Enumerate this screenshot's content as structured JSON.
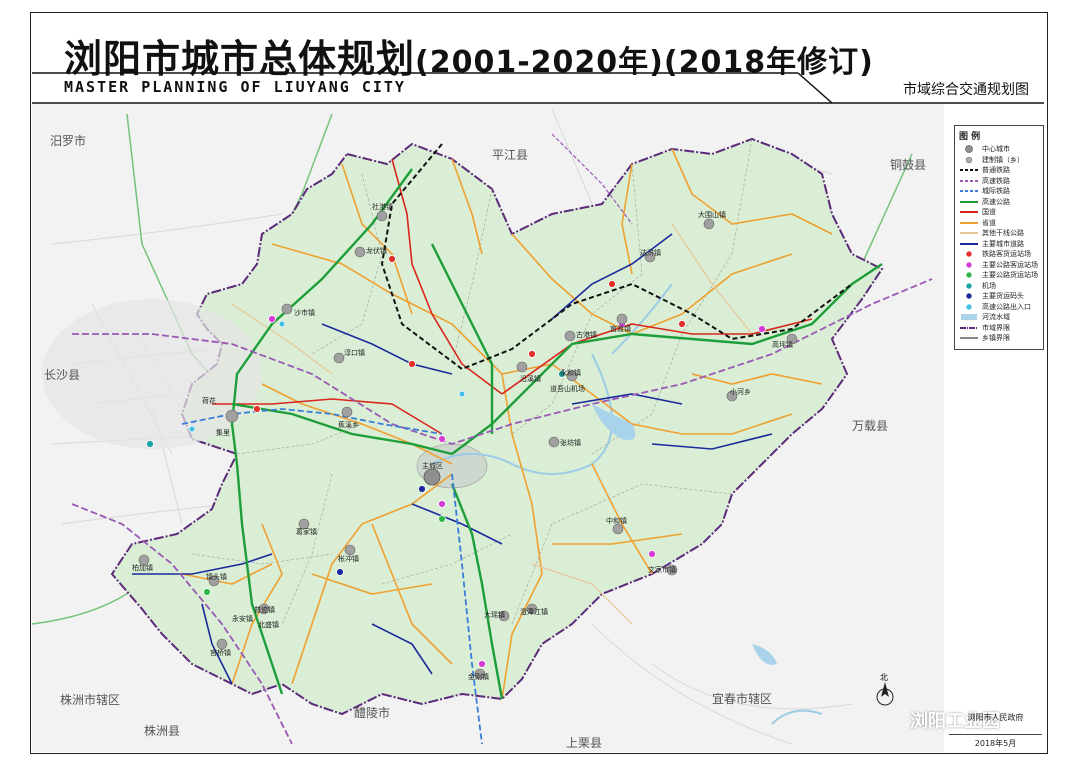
{
  "header": {
    "title_main": "浏阳市城市总体规划",
    "title_years": "(2001-2020年)(2018年修订)",
    "title_en": "MASTER PLANNING OF LIUYANG CITY",
    "map_name": "市域综合交通规划图"
  },
  "legend": {
    "title": "图 例",
    "items": [
      {
        "label": "中心城市",
        "symbol": "circle-gray-large"
      },
      {
        "label": "建制镇（乡）",
        "symbol": "circle-gray-small"
      },
      {
        "label": "普通铁路",
        "symbol": "line-black-dash",
        "color": "#111111"
      },
      {
        "label": "高速铁路",
        "symbol": "line-purple-dash",
        "color": "#9b59b6"
      },
      {
        "label": "城际铁路",
        "symbol": "line-blue-dash",
        "color": "#3b7dd8"
      },
      {
        "label": "高速公路",
        "symbol": "line-green",
        "color": "#1e9e3a"
      },
      {
        "label": "国道",
        "symbol": "line-red",
        "color": "#d9261c"
      },
      {
        "label": "省道",
        "symbol": "line-orange",
        "color": "#f0a030"
      },
      {
        "label": "其他干线公路",
        "symbol": "line-tan",
        "color": "#e8c69a"
      },
      {
        "label": "主要城市道路",
        "symbol": "line-navy",
        "color": "#1a2a9c"
      },
      {
        "label": "铁路客货运站场",
        "symbol": "dot-red",
        "color": "#e0312b"
      },
      {
        "label": "主要公路客运站场",
        "symbol": "dot-magenta",
        "color": "#d63bd6"
      },
      {
        "label": "主要公路货运站场",
        "symbol": "dot-green",
        "color": "#2fb84a"
      },
      {
        "label": "机场",
        "symbol": "dot-teal",
        "color": "#1aa3a3"
      },
      {
        "label": "主要货运码头",
        "symbol": "dot-navy",
        "color": "#1a2a9c"
      },
      {
        "label": "高速公路出入口",
        "symbol": "dot-cyan",
        "color": "#44c2e6"
      },
      {
        "label": "河流水域",
        "symbol": "swatch-water",
        "color": "#a9d3ea"
      },
      {
        "label": "市域界限",
        "symbol": "line-purple-bold",
        "color": "#5c2a7a"
      },
      {
        "label": "乡镇界限",
        "symbol": "line-gray-thin",
        "color": "#888888"
      }
    ]
  },
  "map": {
    "region_fill": "#d9eed4",
    "neighbors": [
      {
        "name": "汨罗市"
      },
      {
        "name": "平江县"
      },
      {
        "name": "铜鼓县"
      },
      {
        "name": "长沙县"
      },
      {
        "name": "万载县"
      },
      {
        "name": "株洲市辖区"
      },
      {
        "name": "株洲县"
      },
      {
        "name": "醴陵市"
      },
      {
        "name": "上栗县"
      },
      {
        "name": "宜春市辖区"
      }
    ],
    "towns": [
      {
        "name": "社港镇"
      },
      {
        "name": "龙伏镇"
      },
      {
        "name": "沙市镇"
      },
      {
        "name": "淳口镇"
      },
      {
        "name": "大围山镇"
      },
      {
        "name": "达浒镇"
      },
      {
        "name": "官渡镇"
      },
      {
        "name": "古港镇"
      },
      {
        "name": "沿溪镇"
      },
      {
        "name": "永和镇"
      },
      {
        "name": "张坊镇"
      },
      {
        "name": "小河乡"
      },
      {
        "name": "高坪镇"
      },
      {
        "name": "蕉溪乡"
      },
      {
        "name": "主城区"
      },
      {
        "name": "集里"
      },
      {
        "name": "荷花"
      },
      {
        "name": "中和镇"
      },
      {
        "name": "文家市镇"
      },
      {
        "name": "葛家镇"
      },
      {
        "name": "柏加镇"
      },
      {
        "name": "镇头镇"
      },
      {
        "name": "普迹镇"
      },
      {
        "name": "官桥镇"
      },
      {
        "name": "澄潭江镇"
      },
      {
        "name": "大瑶镇"
      },
      {
        "name": "金刚镇"
      },
      {
        "name": "永安镇"
      },
      {
        "name": "北盛镇"
      },
      {
        "name": "枨冲镇"
      },
      {
        "name": "道吾山机场"
      }
    ],
    "watermark": "浏阳工业园",
    "compass_label": "北"
  },
  "footer": {
    "seal_text": "浏阳市人民政府",
    "date": "2018年5月"
  }
}
